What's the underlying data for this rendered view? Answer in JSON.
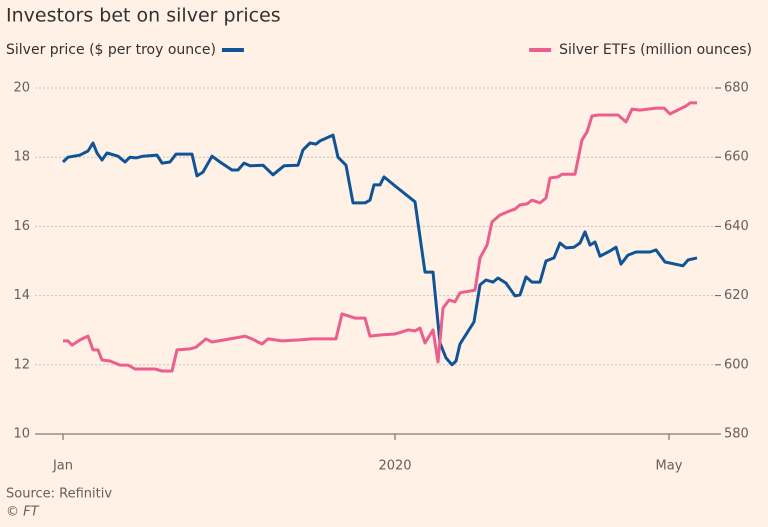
{
  "chart_data": {
    "type": "line",
    "title": "Investors bet on silver prices",
    "source": "Source: Refinitiv",
    "credit": "© FT",
    "xlim": [
      -28,
      652
    ],
    "xticks": [
      {
        "value": 0,
        "label": "Jan"
      },
      {
        "value": 332,
        "label": "2020"
      },
      {
        "value": 606,
        "label": "May"
      }
    ],
    "ylim": [
      10,
      20
    ],
    "yticks": [
      10,
      12,
      14,
      16,
      18,
      20
    ],
    "y2lim": [
      580,
      680
    ],
    "y2ticks": [
      580,
      600,
      620,
      640,
      660,
      680
    ],
    "grid": true,
    "series": [
      {
        "name": "Silver price ($ per troy ounce)",
        "color": "#0f5499",
        "x": [
          0,
          5,
          17,
          25,
          30,
          34,
          39,
          44,
          55,
          62,
          67,
          73,
          80,
          94,
          99,
          107,
          113,
          129,
          134,
          140,
          149,
          157,
          169,
          175,
          181,
          187,
          200,
          210,
          221,
          235,
          240,
          247,
          253,
          257,
          270,
          275,
          283,
          290,
          302,
          307,
          311,
          317,
          321,
          332,
          352,
          362,
          370,
          377,
          383,
          389,
          393,
          397,
          411,
          417,
          423,
          430,
          435,
          443,
          452,
          457,
          463,
          469,
          477,
          483,
          491,
          497,
          503,
          511,
          517,
          522,
          527,
          532,
          537,
          547,
          553,
          558,
          565,
          573,
          587,
          593,
          602,
          620,
          625,
          634
        ],
        "values": [
          17.86,
          18.0,
          18.06,
          18.18,
          18.41,
          18.12,
          17.92,
          18.12,
          18.03,
          17.86,
          18.0,
          17.98,
          18.03,
          18.06,
          17.83,
          17.86,
          18.09,
          18.09,
          17.46,
          17.57,
          18.03,
          17.86,
          17.63,
          17.63,
          17.83,
          17.75,
          17.77,
          17.49,
          17.75,
          17.77,
          18.21,
          18.41,
          18.38,
          18.47,
          18.64,
          18.0,
          17.77,
          16.68,
          16.68,
          16.76,
          17.2,
          17.2,
          17.43,
          17.17,
          16.71,
          14.68,
          14.68,
          12.63,
          12.2,
          12.0,
          12.11,
          12.6,
          13.24,
          14.31,
          14.45,
          14.39,
          14.51,
          14.36,
          13.99,
          14.02,
          14.54,
          14.39,
          14.39,
          15.0,
          15.09,
          15.52,
          15.38,
          15.4,
          15.52,
          15.84,
          15.46,
          15.55,
          15.14,
          15.29,
          15.4,
          14.91,
          15.17,
          15.26,
          15.26,
          15.32,
          14.97,
          14.86,
          15.03,
          15.09
        ]
      },
      {
        "name": "Silver ETFs (million ounces)",
        "color": "#eb5e8d",
        "axis": "y2",
        "x": [
          0,
          5,
          9,
          17,
          25,
          30,
          35,
          39,
          47,
          57,
          65,
          72,
          92,
          99,
          109,
          114,
          127,
          133,
          143,
          149,
          167,
          177,
          182,
          189,
          199,
          205,
          219,
          237,
          249,
          273,
          279,
          292,
          302,
          307,
          317,
          332,
          339,
          345,
          352,
          357,
          362,
          370,
          375,
          380,
          386,
          392,
          397,
          412,
          417,
          424,
          429,
          437,
          447,
          452,
          457,
          464,
          469,
          477,
          483,
          487,
          495,
          499,
          512,
          519,
          524,
          529,
          535,
          555,
          563,
          569,
          577,
          585,
          593,
          601,
          607,
          623,
          627,
          634
        ],
        "values": [
          606.9,
          606.9,
          605.7,
          607.2,
          608.3,
          604.3,
          604.3,
          601.4,
          601.1,
          599.9,
          599.9,
          598.8,
          598.8,
          598.2,
          598.2,
          604.3,
          604.6,
          605.1,
          607.5,
          606.6,
          607.5,
          608.0,
          608.3,
          607.5,
          606.0,
          607.5,
          606.9,
          607.2,
          607.5,
          607.5,
          614.7,
          613.5,
          613.5,
          608.3,
          608.6,
          608.9,
          609.5,
          610.1,
          609.8,
          610.6,
          606.3,
          610.1,
          600.8,
          616.4,
          618.7,
          618.2,
          620.8,
          621.6,
          630.9,
          634.6,
          641.3,
          643.3,
          644.5,
          645.0,
          646.2,
          646.5,
          647.6,
          646.8,
          648.2,
          654.0,
          654.3,
          655.1,
          655.1,
          665.0,
          667.3,
          671.9,
          672.2,
          672.2,
          670.2,
          673.9,
          673.6,
          673.9,
          674.2,
          674.2,
          672.5,
          674.8,
          675.7,
          675.7
        ]
      }
    ]
  }
}
